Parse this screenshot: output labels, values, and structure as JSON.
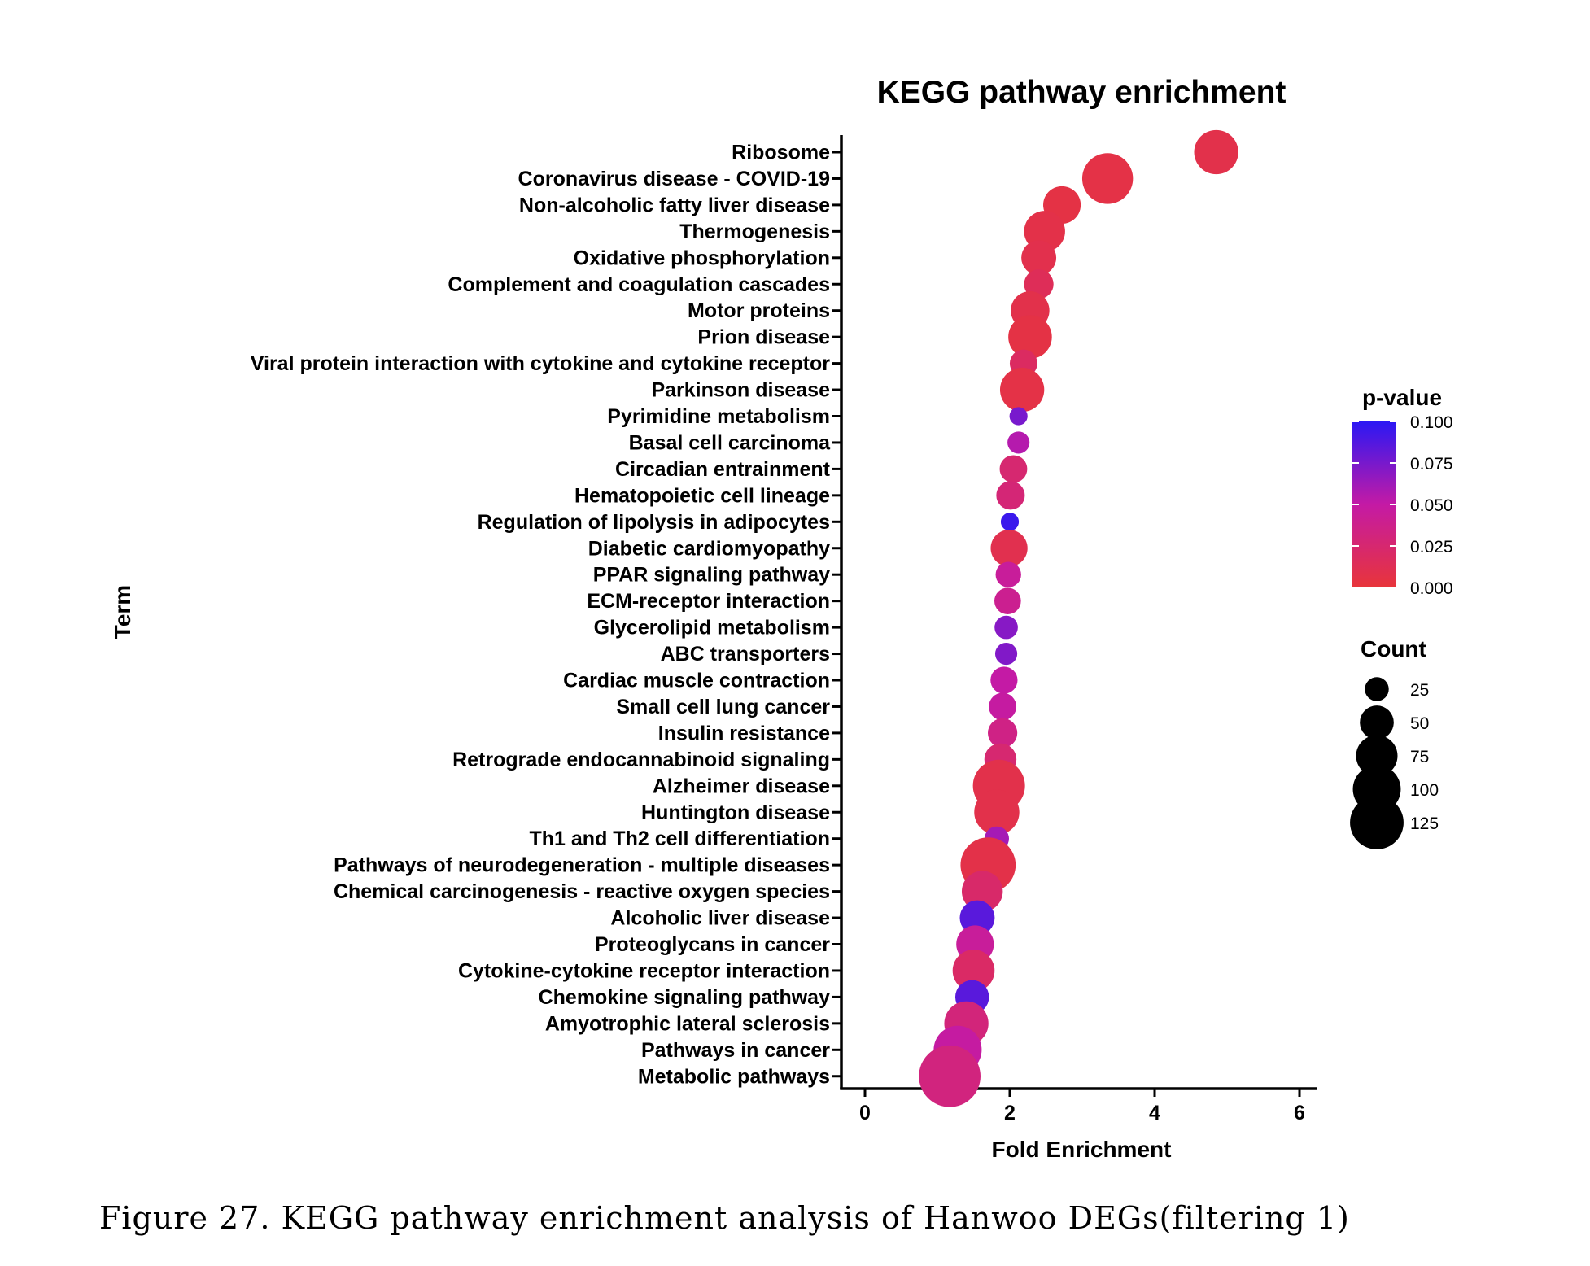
{
  "chart_data": {
    "type": "scatter",
    "title": "KEGG pathway enrichment",
    "xlabel": "Fold Enrichment",
    "ylabel": "Term",
    "xlim": [
      -0.25,
      6.3
    ],
    "xticks": [
      "0",
      "2",
      "4",
      "6"
    ],
    "grid": false,
    "points": [
      {
        "term": "Ribosome",
        "fold": 4.85,
        "pvalue": 0.008,
        "count": 72
      },
      {
        "term": "Coronavirus disease - COVID-19",
        "fold": 3.35,
        "pvalue": 0.006,
        "count": 95
      },
      {
        "term": "Non-alcoholic fatty liver disease",
        "fold": 2.72,
        "pvalue": 0.005,
        "count": 52
      },
      {
        "term": "Thermogenesis",
        "fold": 2.48,
        "pvalue": 0.007,
        "count": 62
      },
      {
        "term": "Oxidative phosphorylation",
        "fold": 2.4,
        "pvalue": 0.009,
        "count": 45
      },
      {
        "term": "Complement and coagulation cascades",
        "fold": 2.4,
        "pvalue": 0.014,
        "count": 32
      },
      {
        "term": "Motor proteins",
        "fold": 2.28,
        "pvalue": 0.008,
        "count": 55
      },
      {
        "term": "Prion disease",
        "fold": 2.28,
        "pvalue": 0.005,
        "count": 70
      },
      {
        "term": "Viral protein interaction with cytokine and cytokine receptor",
        "fold": 2.19,
        "pvalue": 0.018,
        "count": 28
      },
      {
        "term": "Parkinson disease",
        "fold": 2.17,
        "pvalue": 0.006,
        "count": 72
      },
      {
        "term": "Pyrimidine metabolism",
        "fold": 2.12,
        "pvalue": 0.075,
        "count": 12
      },
      {
        "term": "Basal cell carcinoma",
        "fold": 2.12,
        "pvalue": 0.055,
        "count": 18
      },
      {
        "term": "Circadian entrainment",
        "fold": 2.05,
        "pvalue": 0.025,
        "count": 28
      },
      {
        "term": "Hematopoietic cell lineage",
        "fold": 2.01,
        "pvalue": 0.028,
        "count": 30
      },
      {
        "term": "Regulation of lipolysis in adipocytes",
        "fold": 2.0,
        "pvalue": 0.095,
        "count": 12
      },
      {
        "term": "Diabetic cardiomyopathy",
        "fold": 1.99,
        "pvalue": 0.01,
        "count": 50
      },
      {
        "term": "PPAR signaling pathway",
        "fold": 1.98,
        "pvalue": 0.045,
        "count": 24
      },
      {
        "term": "ECM-receptor interaction",
        "fold": 1.97,
        "pvalue": 0.04,
        "count": 26
      },
      {
        "term": "Glycerolipid metabolism",
        "fold": 1.95,
        "pvalue": 0.07,
        "count": 20
      },
      {
        "term": "ABC transporters",
        "fold": 1.95,
        "pvalue": 0.072,
        "count": 18
      },
      {
        "term": "Cardiac muscle contraction",
        "fold": 1.92,
        "pvalue": 0.05,
        "count": 27
      },
      {
        "term": "Small cell lung cancer",
        "fold": 1.9,
        "pvalue": 0.048,
        "count": 28
      },
      {
        "term": "Insulin resistance",
        "fold": 1.9,
        "pvalue": 0.035,
        "count": 32
      },
      {
        "term": "Retrograde endocannabinoid signaling",
        "fold": 1.87,
        "pvalue": 0.025,
        "count": 38
      },
      {
        "term": "Alzheimer disease",
        "fold": 1.85,
        "pvalue": 0.008,
        "count": 100
      },
      {
        "term": "Huntington disease",
        "fold": 1.82,
        "pvalue": 0.008,
        "count": 75
      },
      {
        "term": "Th1 and Th2 cell differentiation",
        "fold": 1.82,
        "pvalue": 0.06,
        "count": 22
      },
      {
        "term": "Pathways of neurodegeneration - multiple diseases",
        "fold": 1.7,
        "pvalue": 0.007,
        "count": 112
      },
      {
        "term": "Chemical carcinogenesis - reactive oxygen species",
        "fold": 1.62,
        "pvalue": 0.022,
        "count": 62
      },
      {
        "term": "Alcoholic liver disease",
        "fold": 1.55,
        "pvalue": 0.085,
        "count": 45
      },
      {
        "term": "Proteoglycans in cancer",
        "fold": 1.52,
        "pvalue": 0.045,
        "count": 52
      },
      {
        "term": "Cytokine-cytokine receptor interaction",
        "fold": 1.5,
        "pvalue": 0.02,
        "count": 65
      },
      {
        "term": "Chemokine signaling pathway",
        "fold": 1.48,
        "pvalue": 0.085,
        "count": 42
      },
      {
        "term": "Amyotrophic lateral sclerosis",
        "fold": 1.4,
        "pvalue": 0.03,
        "count": 72
      },
      {
        "term": "Pathways in cancer",
        "fold": 1.28,
        "pvalue": 0.048,
        "count": 85
      },
      {
        "term": "Metabolic pathways",
        "fold": 1.17,
        "pvalue": 0.032,
        "count": 140
      }
    ],
    "color_legend": {
      "title": "p-value",
      "ticks": [
        "0.100",
        "0.075",
        "0.050",
        "0.025",
        "0.000"
      ],
      "range": [
        0,
        0.1
      ],
      "low_color": "#e8353a",
      "mid_color": "#c41aa5",
      "high_color": "#2b18f4"
    },
    "size_legend": {
      "title": "Count",
      "values": [
        25,
        50,
        75,
        100,
        125
      ],
      "labels": [
        "25",
        "50",
        "75",
        "100",
        "125"
      ]
    }
  },
  "caption": "Figure 27. KEGG pathway enrichment analysis of Hanwoo DEGs(filtering 1)"
}
